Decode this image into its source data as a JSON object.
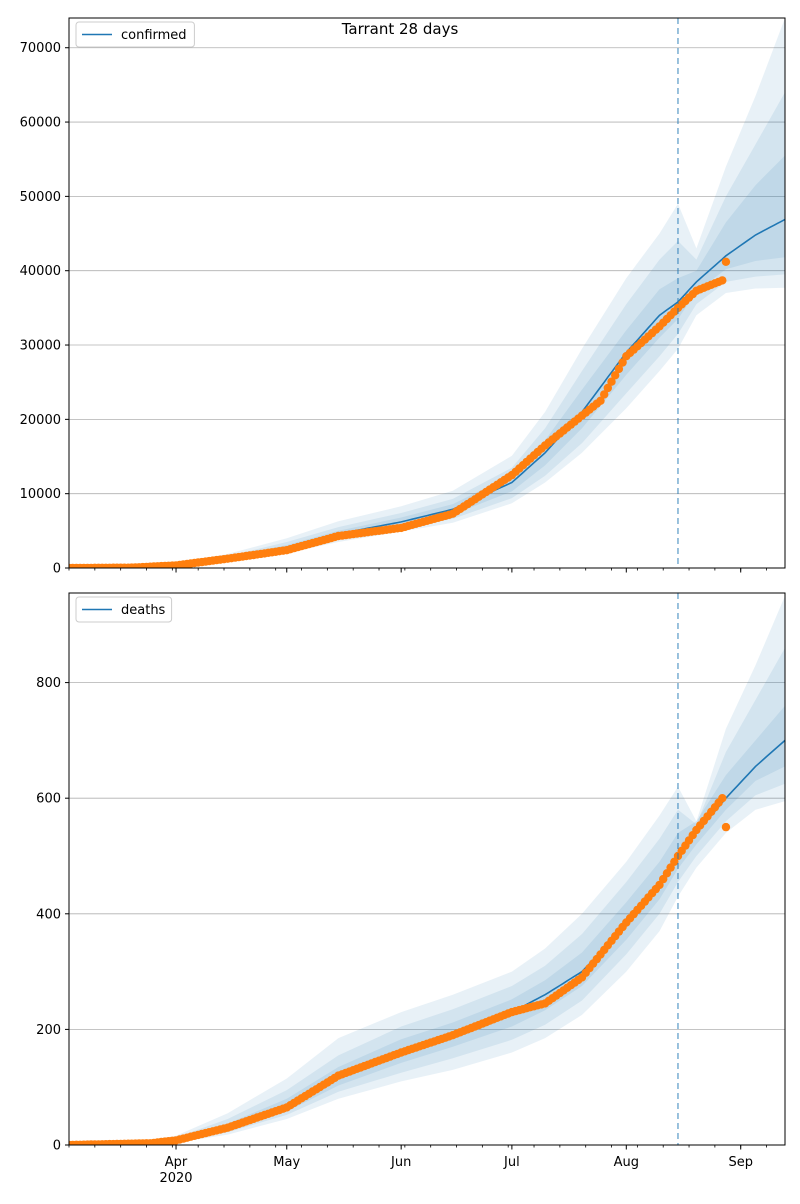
{
  "title": "Tarrant 28 days",
  "colors": {
    "line": "#1f77b4",
    "band": "#1f77b4",
    "obs": "#ff7f0e",
    "grid": "#b0b0b0"
  },
  "x_ticks": [
    {
      "date": "2020-04-01",
      "label": "Apr",
      "sublabel": "2020"
    },
    {
      "date": "2020-05-01",
      "label": "May",
      "sublabel": ""
    },
    {
      "date": "2020-06-01",
      "label": "Jun",
      "sublabel": ""
    },
    {
      "date": "2020-07-01",
      "label": "Jul",
      "sublabel": ""
    },
    {
      "date": "2020-08-01",
      "label": "Aug",
      "sublabel": ""
    },
    {
      "date": "2020-09-01",
      "label": "Sep",
      "sublabel": ""
    }
  ],
  "chart_data": [
    {
      "type": "line",
      "legend": "confirmed",
      "legend_position": "top-left",
      "grid": true,
      "xlim": [
        "2020-03-03",
        "2020-09-13"
      ],
      "ylim": [
        0,
        74000
      ],
      "yticks": [
        0,
        10000,
        20000,
        30000,
        40000,
        50000,
        60000,
        70000
      ],
      "vline": "2020-08-15",
      "observed_end": "2020-08-28",
      "model": {
        "x": [
          "2020-03-03",
          "2020-03-20",
          "2020-04-01",
          "2020-04-15",
          "2020-05-01",
          "2020-05-15",
          "2020-06-01",
          "2020-06-15",
          "2020-07-01",
          "2020-07-10",
          "2020-07-20",
          "2020-08-01",
          "2020-08-10",
          "2020-08-15",
          "2020-08-20",
          "2020-08-28",
          "2020-09-05",
          "2020-09-13"
        ],
        "y": [
          0,
          40,
          400,
          1300,
          2800,
          4600,
          6200,
          7900,
          11500,
          15500,
          21000,
          29000,
          34000,
          35800,
          38500,
          42000,
          44800,
          46900
        ],
        "band_lo": [
          [
            0,
            0,
            250,
            900,
            2000,
            3500,
            4900,
            6100,
            8700,
            11500,
            15500,
            21500,
            26500,
            29500,
            34000,
            37000,
            37600,
            37700
          ],
          [
            0,
            10,
            300,
            1000,
            2200,
            3900,
            5300,
            6600,
            9400,
            12400,
            16800,
            23500,
            28500,
            31500,
            35500,
            38500,
            39200,
            39500
          ],
          [
            0,
            20,
            350,
            1150,
            2500,
            4200,
            5700,
            7200,
            10300,
            13800,
            18800,
            26000,
            31000,
            33500,
            37200,
            40200,
            41300,
            41800
          ]
        ],
        "band_hi": [
          [
            0,
            90,
            600,
            1900,
            4000,
            6300,
            8300,
            10400,
            15100,
            21000,
            29500,
            39000,
            45000,
            49000,
            43000,
            54000,
            63500,
            74000
          ],
          [
            0,
            70,
            500,
            1600,
            3500,
            5500,
            7400,
            9300,
            13500,
            18800,
            26500,
            35500,
            41500,
            44000,
            41500,
            50000,
            57000,
            64000
          ],
          [
            0,
            55,
            450,
            1450,
            3100,
            5000,
            6800,
            8600,
            12500,
            17200,
            24000,
            32000,
            37500,
            39000,
            40000,
            46500,
            51500,
            55500
          ]
        ]
      },
      "observed_anchors": {
        "x": [
          "2020-03-03",
          "2020-03-20",
          "2020-04-01",
          "2020-04-15",
          "2020-05-01",
          "2020-05-15",
          "2020-06-01",
          "2020-06-15",
          "2020-07-01",
          "2020-07-10",
          "2020-07-20",
          "2020-07-25",
          "2020-08-01",
          "2020-08-10",
          "2020-08-15",
          "2020-08-20",
          "2020-08-27"
        ],
        "y": [
          0,
          50,
          350,
          1250,
          2400,
          4300,
          5400,
          7300,
          12500,
          16500,
          20500,
          22500,
          28500,
          32500,
          35000,
          37300,
          38700
        ]
      },
      "observed_last": {
        "x": "2020-08-28",
        "y": 41200
      }
    },
    {
      "type": "line",
      "legend": "deaths",
      "legend_position": "top-left",
      "grid": true,
      "xlim": [
        "2020-03-03",
        "2020-09-13"
      ],
      "ylim": [
        0,
        955
      ],
      "yticks": [
        0,
        200,
        400,
        600,
        800
      ],
      "vline": "2020-08-15",
      "observed_end": "2020-08-28",
      "model": {
        "x": [
          "2020-03-03",
          "2020-03-25",
          "2020-04-01",
          "2020-04-15",
          "2020-05-01",
          "2020-05-15",
          "2020-06-01",
          "2020-06-15",
          "2020-07-01",
          "2020-07-10",
          "2020-07-20",
          "2020-08-01",
          "2020-08-10",
          "2020-08-15",
          "2020-08-20",
          "2020-08-28",
          "2020-09-05",
          "2020-09-13"
        ],
        "y": [
          0,
          3,
          8,
          30,
          65,
          115,
          160,
          190,
          230,
          260,
          300,
          380,
          450,
          500,
          540,
          600,
          655,
          700
        ],
        "band_lo": [
          [
            0,
            1,
            4,
            18,
            45,
            80,
            110,
            130,
            160,
            185,
            225,
            300,
            370,
            430,
            480,
            540,
            580,
            595
          ],
          [
            0,
            2,
            5,
            22,
            52,
            92,
            125,
            150,
            182,
            208,
            250,
            330,
            400,
            455,
            500,
            560,
            605,
            625
          ],
          [
            0,
            2,
            6,
            26,
            58,
            103,
            142,
            170,
            205,
            233,
            275,
            355,
            425,
            478,
            520,
            580,
            630,
            655
          ]
        ],
        "band_hi": [
          [
            0,
            8,
            16,
            55,
            115,
            185,
            230,
            260,
            300,
            340,
            400,
            490,
            570,
            620,
            560,
            720,
            830,
            950
          ],
          [
            0,
            6,
            13,
            45,
            95,
            155,
            205,
            235,
            275,
            310,
            365,
            455,
            530,
            580,
            555,
            680,
            770,
            860
          ],
          [
            0,
            4,
            10,
            37,
            80,
            135,
            183,
            212,
            252,
            285,
            333,
            420,
            490,
            540,
            560,
            640,
            700,
            760
          ]
        ]
      },
      "observed_anchors": {
        "x": [
          "2020-03-03",
          "2020-03-25",
          "2020-04-01",
          "2020-04-15",
          "2020-05-01",
          "2020-05-15",
          "2020-06-01",
          "2020-06-15",
          "2020-07-01",
          "2020-07-10",
          "2020-07-20",
          "2020-08-01",
          "2020-08-10",
          "2020-08-15",
          "2020-08-20",
          "2020-08-27"
        ],
        "y": [
          0,
          3,
          8,
          30,
          65,
          120,
          160,
          190,
          230,
          245,
          290,
          385,
          450,
          500,
          545,
          600
        ]
      },
      "observed_last": {
        "x": "2020-08-28",
        "y": 550
      }
    }
  ]
}
